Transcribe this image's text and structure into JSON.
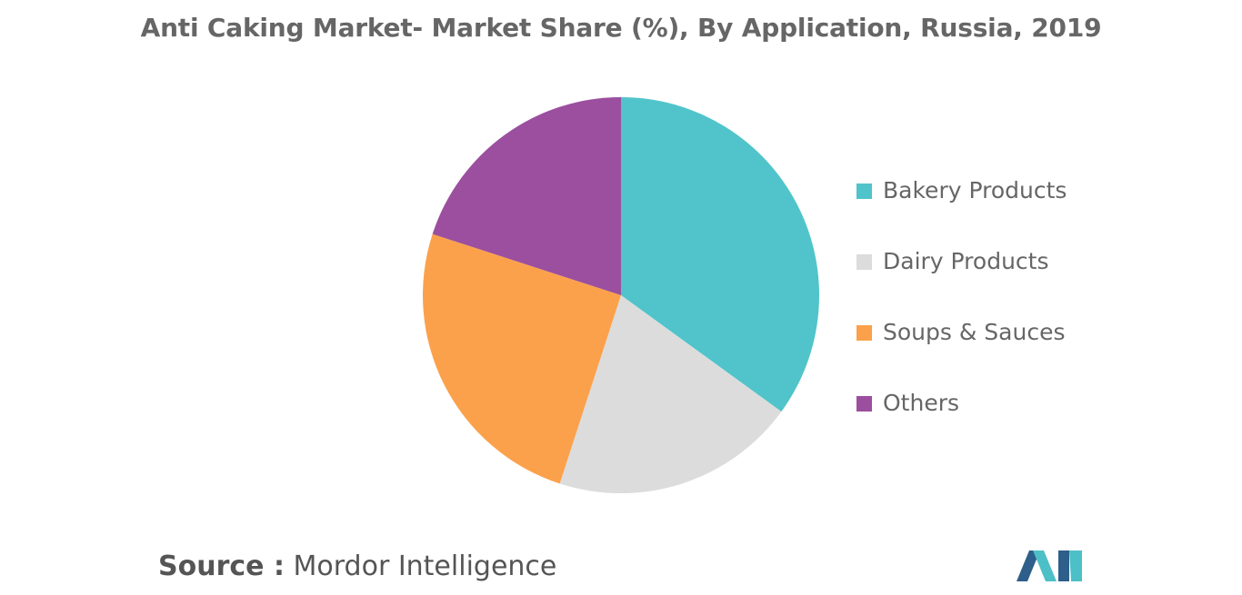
{
  "chart_data": {
    "type": "pie",
    "title": "Anti Caking Market- Market Share (%), By Application, Russia, 2019",
    "categories": [
      "Bakery Products",
      "Dairy Products",
      "Soups & Sauces",
      "Others"
    ],
    "values": [
      35,
      20,
      25,
      20
    ],
    "colors": [
      "#50c4ca",
      "#dcdcdc",
      "#fba14b",
      "#9b4f9e"
    ],
    "legend_position": "right",
    "start_angle": "12 o'clock",
    "direction": "clockwise"
  },
  "source": {
    "prefix": "Source :",
    "name": "Mordor Intelligence"
  },
  "logo": {
    "icon": "mordor-intelligence-logo-icon",
    "colors": [
      "#2d5f8a",
      "#4dbfc6"
    ]
  }
}
